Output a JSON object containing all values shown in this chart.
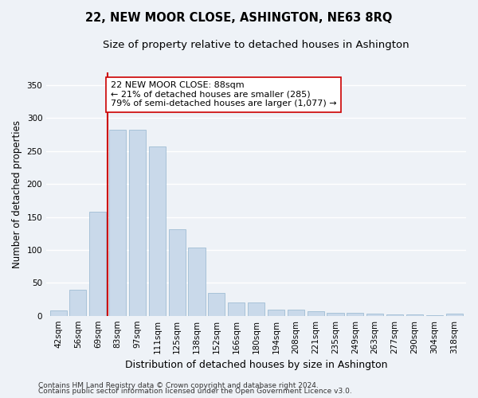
{
  "title": "22, NEW MOOR CLOSE, ASHINGTON, NE63 8RQ",
  "subtitle": "Size of property relative to detached houses in Ashington",
  "xlabel": "Distribution of detached houses by size in Ashington",
  "ylabel": "Number of detached properties",
  "categories": [
    "42sqm",
    "56sqm",
    "69sqm",
    "83sqm",
    "97sqm",
    "111sqm",
    "125sqm",
    "138sqm",
    "152sqm",
    "166sqm",
    "180sqm",
    "194sqm",
    "208sqm",
    "221sqm",
    "235sqm",
    "249sqm",
    "263sqm",
    "277sqm",
    "290sqm",
    "304sqm",
    "318sqm"
  ],
  "values": [
    8,
    40,
    158,
    283,
    283,
    257,
    131,
    103,
    35,
    20,
    20,
    9,
    9,
    7,
    5,
    4,
    3,
    2,
    2,
    1,
    3
  ],
  "bar_color": "#c9d9ea",
  "bar_edgecolor": "#a0bdd4",
  "vline_x": 2.5,
  "vline_color": "#cc0000",
  "annotation_text": "22 NEW MOOR CLOSE: 88sqm\n← 21% of detached houses are smaller (285)\n79% of semi-detached houses are larger (1,077) →",
  "annotation_box_edgecolor": "#cc0000",
  "annotation_box_facecolor": "#ffffff",
  "ylim": [
    0,
    370
  ],
  "yticks": [
    0,
    50,
    100,
    150,
    200,
    250,
    300,
    350
  ],
  "background_color": "#eef2f7",
  "plot_background": "#eef2f7",
  "grid_color": "#ffffff",
  "footer_line1": "Contains HM Land Registry data © Crown copyright and database right 2024.",
  "footer_line2": "Contains public sector information licensed under the Open Government Licence v3.0.",
  "title_fontsize": 10.5,
  "subtitle_fontsize": 9.5,
  "xlabel_fontsize": 9,
  "ylabel_fontsize": 8.5,
  "tick_fontsize": 7.5,
  "annotation_fontsize": 8,
  "footer_fontsize": 6.5
}
